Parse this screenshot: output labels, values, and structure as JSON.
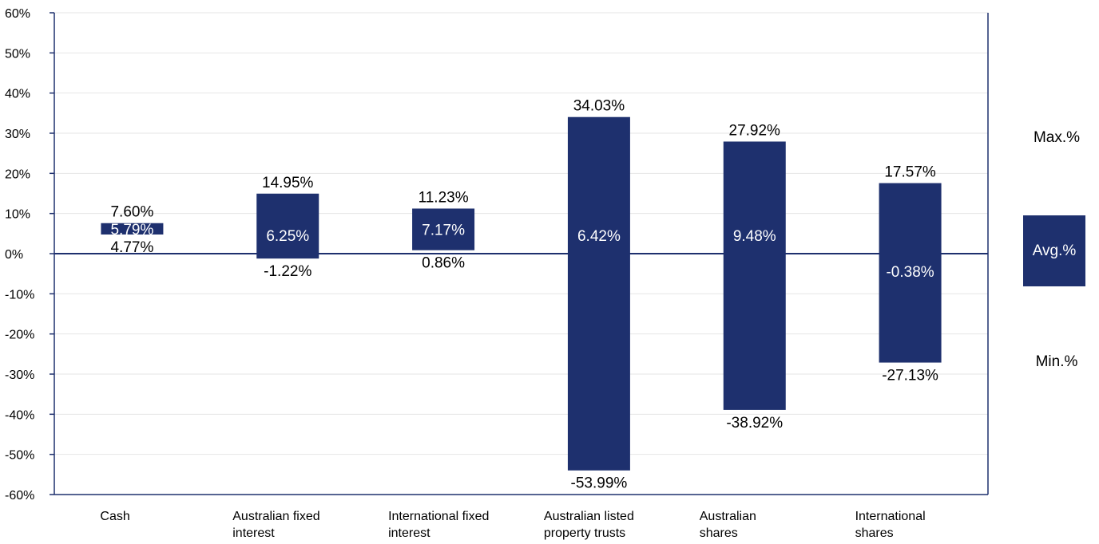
{
  "chart_data": {
    "type": "bar",
    "subtype": "floating-range",
    "categories": [
      "Cash",
      "Australian fixed interest",
      "International fixed interest",
      "Australian listed property trusts",
      "Australian shares",
      "International shares"
    ],
    "category_lines": [
      [
        "Cash"
      ],
      [
        "Australian fixed",
        "interest"
      ],
      [
        "International fixed",
        "interest"
      ],
      [
        "Australian listed",
        "property trusts"
      ],
      [
        "Australian",
        "shares"
      ],
      [
        "International",
        "shares"
      ]
    ],
    "max": [
      7.6,
      14.95,
      11.23,
      34.03,
      27.92,
      17.57
    ],
    "avg": [
      5.79,
      6.25,
      7.17,
      6.42,
      9.48,
      -0.38
    ],
    "min": [
      4.77,
      -1.22,
      0.86,
      -53.99,
      -38.92,
      -27.13
    ],
    "max_labels": [
      "7.60%",
      "14.95%",
      "11.23%",
      "34.03%",
      "27.92%",
      "17.57%"
    ],
    "avg_labels": [
      "5.79%",
      "6.25%",
      "7.17%",
      "6.42%",
      "9.48%",
      "-0.38%"
    ],
    "min_labels": [
      "4.77%",
      "-1.22%",
      "0.86%",
      "-53.99%",
      "-38.92%",
      "-27.13%"
    ],
    "y_ticks": [
      60,
      50,
      40,
      30,
      20,
      10,
      0,
      -10,
      -20,
      -30,
      -40,
      -50,
      -60
    ],
    "y_tick_labels": [
      "60%",
      "50%",
      "40%",
      "30%",
      "20%",
      "10%",
      "0%",
      "-10%",
      "-20%",
      "-30%",
      "-40%",
      "-50%",
      "-60%"
    ],
    "ylim": [
      -60,
      60
    ],
    "grid": true,
    "legend_position": "right",
    "title": "",
    "xlabel": "",
    "ylabel": ""
  },
  "legend": {
    "max": "Max.%",
    "avg": "Avg.%",
    "min": "Min.%"
  },
  "colors": {
    "bar": "#1e306e",
    "axis": "#1e306e",
    "grid": "#e6e6e6",
    "text": "#000000",
    "bar_text": "#ffffff"
  }
}
